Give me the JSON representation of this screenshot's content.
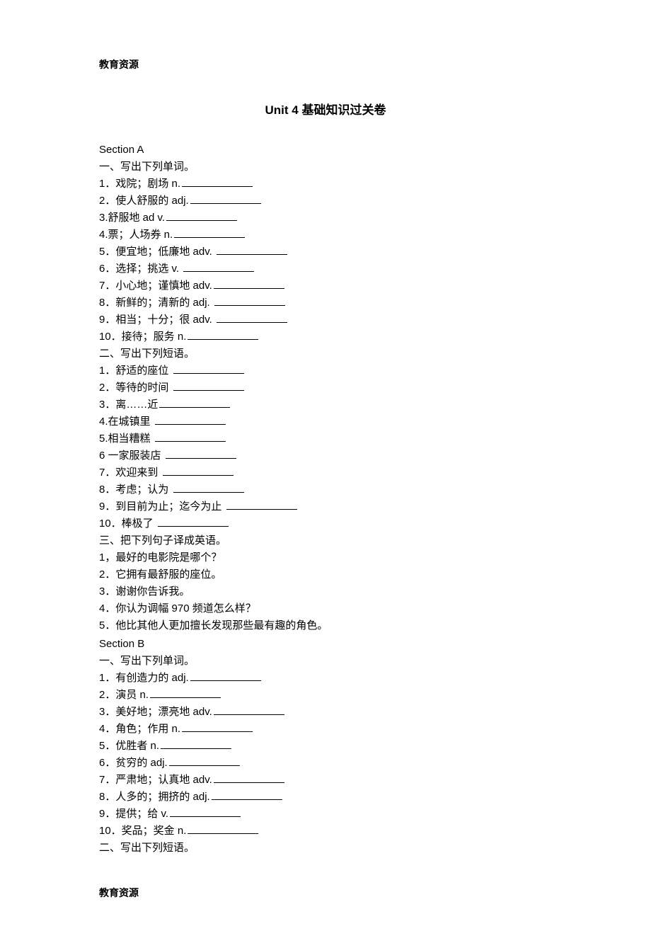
{
  "header": "教育资源",
  "title": "Unit 4  基础知识过关卷",
  "sectionA": {
    "label": "Section A",
    "part1": {
      "heading": "一、写出下列单词。",
      "items": [
        "1．戏院；剧场  n.",
        "2．使人舒服的  adj.",
        "3.舒服地  ad v.",
        "4.票；人场券  n.",
        "5．便宜地；低廉地   adv.",
        "6．选择；挑选   v.",
        "7．小心地；谨慎地   adv.",
        "8．新鲜的；清新的   adj.",
        "9．相当；十分；很   adv.",
        "10．接待；服务   n."
      ]
    },
    "part2": {
      "heading": "二、写出下列短语。",
      "items": [
        "1．舒适的座位",
        "2．等待的时间",
        "3．离……近",
        "4.在城镇里",
        "5.相当糟糕",
        "6 一家服装店",
        "7．欢迎来到",
        "8．考虑；认为",
        "9．到目前为止；迄今为止",
        "10．棒极了"
      ]
    },
    "part3": {
      "heading": "三、把下列句子译成英语。",
      "items": [
        "1，最好的电影院是哪个？",
        "2．它拥有最舒服的座位。",
        "3．谢谢你告诉我。",
        "4．你认为调幅  970 频道怎么样？",
        "5．他比其他人更加擅长发现那些最有趣的角色。"
      ]
    }
  },
  "sectionB": {
    "label": "Section B",
    "part1": {
      "heading": "一、写出下列单词。",
      "items": [
        "1．有创造力的  adj.",
        "2．演员  n.",
        "3．美好地；漂亮地   adv.",
        "4．角色；作用   n.",
        "5．优胜者  n.",
        "6．贫穷的  adj.",
        "7．严肃地；认真地   adv.",
        "8．人多的；拥挤的   adj.",
        "9．提供；给  v.",
        "10．奖品；奖金   n."
      ]
    },
    "part2": {
      "heading": "二、写出下列短语。"
    }
  },
  "footer": "教育资源"
}
